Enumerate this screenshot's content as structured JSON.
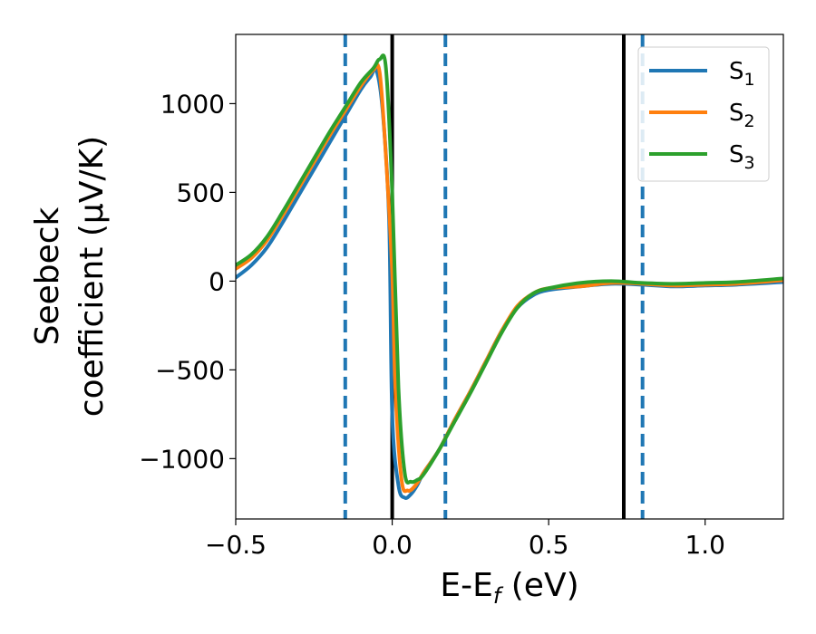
{
  "chart_data": {
    "type": "line",
    "xlabel": "E-E",
    "xlabel_sub": "f",
    "xlabel_unit": " (eV)",
    "ylabel_line1": "Seebeck",
    "ylabel_line2": "coefficient  (μV/K)",
    "xlim": [
      -0.5,
      1.25
    ],
    "ylim": [
      -1340,
      1390
    ],
    "x_ticks": [
      -0.5,
      0.0,
      0.5,
      1.0
    ],
    "x_tick_labels": [
      "−0.5",
      "0.0",
      "0.5",
      "1.0"
    ],
    "y_ticks": [
      -1000,
      -500,
      0,
      500,
      1000
    ],
    "y_tick_labels": [
      "−1000",
      "−500",
      "0",
      "500",
      "1000"
    ],
    "grid": false,
    "legend_position": "top-right",
    "vlines": [
      {
        "x": -0.15,
        "style": "dashed",
        "color": "#1f77b4"
      },
      {
        "x": 0.0,
        "style": "solid",
        "color": "#000000"
      },
      {
        "x": 0.17,
        "style": "dashed",
        "color": "#1f77b4"
      },
      {
        "x": 0.74,
        "style": "solid",
        "color": "#000000"
      },
      {
        "x": 0.8,
        "style": "dashed",
        "color": "#1f77b4"
      }
    ],
    "series": [
      {
        "name": "S",
        "sub": "1",
        "color": "#1f77b4",
        "x": [
          -0.5,
          -0.45,
          -0.4,
          -0.35,
          -0.3,
          -0.25,
          -0.2,
          -0.15,
          -0.1,
          -0.07,
          -0.05,
          -0.03,
          -0.01,
          0.0,
          0.02,
          0.04,
          0.06,
          0.08,
          0.1,
          0.15,
          0.2,
          0.25,
          0.3,
          0.35,
          0.4,
          0.45,
          0.5,
          0.6,
          0.7,
          0.8,
          0.9,
          1.0,
          1.1,
          1.25
        ],
        "y": [
          20,
          90,
          190,
          330,
          480,
          630,
          780,
          930,
          1080,
          1150,
          1185,
          950,
          350,
          -750,
          -1150,
          -1220,
          -1200,
          -1150,
          -1080,
          -950,
          -780,
          -620,
          -450,
          -280,
          -150,
          -80,
          -50,
          -30,
          -15,
          -20,
          -30,
          -25,
          -20,
          -5
        ]
      },
      {
        "name": "S",
        "sub": "2",
        "color": "#ff7f0e",
        "x": [
          -0.5,
          -0.45,
          -0.4,
          -0.35,
          -0.3,
          -0.25,
          -0.2,
          -0.15,
          -0.1,
          -0.06,
          -0.04,
          -0.02,
          0.0,
          0.01,
          0.03,
          0.05,
          0.07,
          0.09,
          0.1,
          0.15,
          0.2,
          0.25,
          0.3,
          0.35,
          0.4,
          0.45,
          0.5,
          0.6,
          0.7,
          0.8,
          0.9,
          1.0,
          1.1,
          1.25
        ],
        "y": [
          70,
          130,
          230,
          370,
          520,
          670,
          820,
          960,
          1100,
          1190,
          1175,
          700,
          50,
          -600,
          -1120,
          -1180,
          -1160,
          -1110,
          -1080,
          -950,
          -780,
          -620,
          -450,
          -280,
          -140,
          -70,
          -40,
          -30,
          -10,
          -15,
          -25,
          -20,
          -15,
          5
        ]
      },
      {
        "name": "S",
        "sub": "3",
        "color": "#2ca02c",
        "x": [
          -0.5,
          -0.45,
          -0.4,
          -0.35,
          -0.3,
          -0.25,
          -0.2,
          -0.15,
          -0.1,
          -0.06,
          -0.04,
          -0.02,
          0.0,
          0.02,
          0.04,
          0.06,
          0.08,
          0.1,
          0.15,
          0.2,
          0.25,
          0.3,
          0.35,
          0.4,
          0.45,
          0.5,
          0.6,
          0.7,
          0.8,
          0.9,
          1.0,
          1.1,
          1.25
        ],
        "y": [
          90,
          150,
          250,
          390,
          540,
          690,
          840,
          980,
          1120,
          1200,
          1250,
          1200,
          500,
          -600,
          -1080,
          -1130,
          -1120,
          -1090,
          -950,
          -790,
          -630,
          -460,
          -290,
          -150,
          -70,
          -40,
          -10,
          0,
          -10,
          -15,
          -10,
          -5,
          15
        ]
      }
    ]
  }
}
